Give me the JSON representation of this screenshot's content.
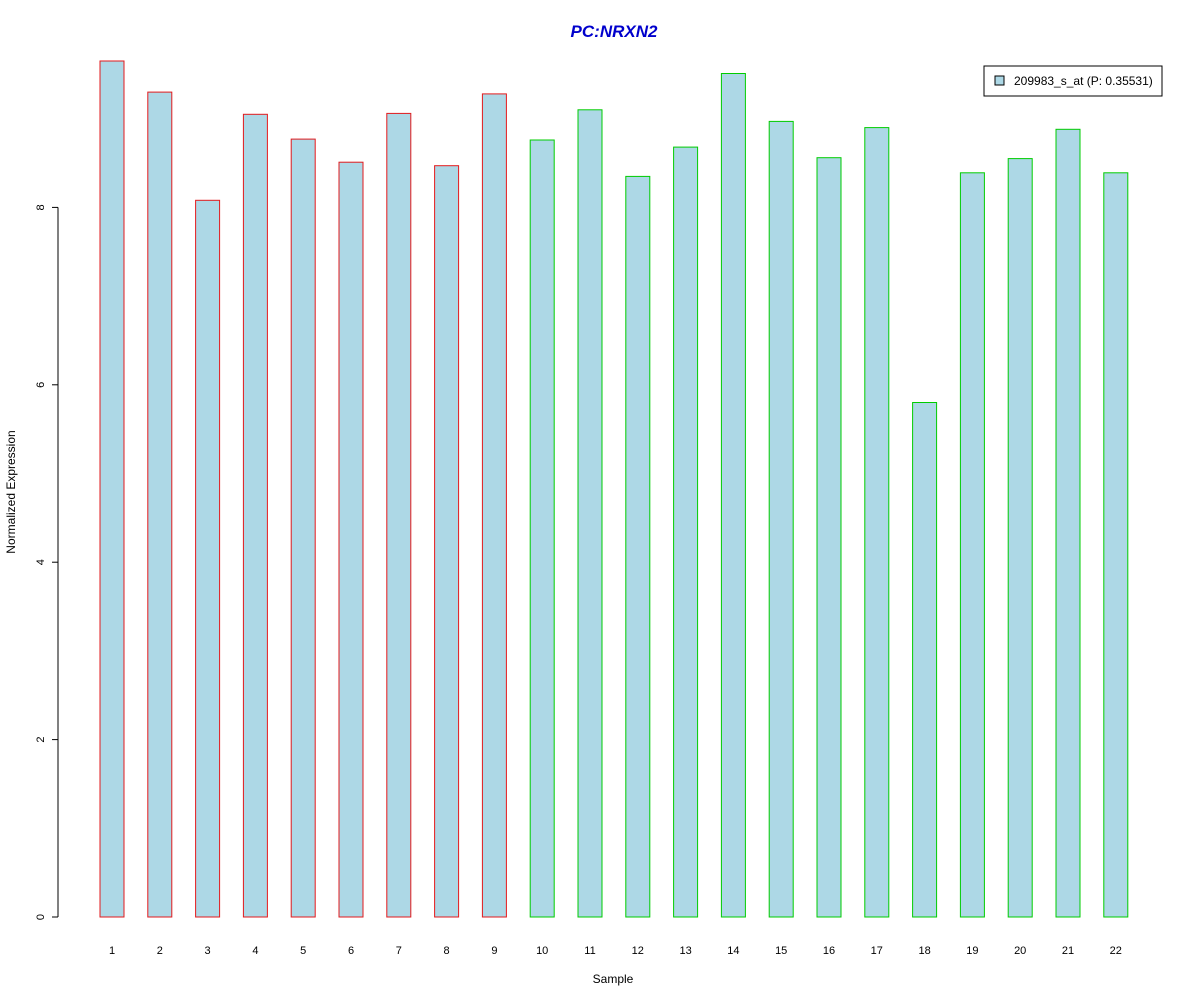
{
  "chart_data": {
    "type": "bar",
    "title": "PC:NRXN2",
    "xlabel": "Sample",
    "ylabel": "Normalized Expression",
    "categories": [
      "1",
      "2",
      "3",
      "4",
      "5",
      "6",
      "7",
      "8",
      "9",
      "10",
      "11",
      "12",
      "13",
      "14",
      "15",
      "16",
      "17",
      "18",
      "19",
      "20",
      "21",
      "22"
    ],
    "series": [
      {
        "name": "209983_s_at (P: 0.35531)",
        "values": [
          9.65,
          9.3,
          8.08,
          9.05,
          8.77,
          8.51,
          9.06,
          8.47,
          9.28,
          8.76,
          9.1,
          8.35,
          8.68,
          9.51,
          8.97,
          8.56,
          8.9,
          5.8,
          8.39,
          8.55,
          8.88,
          8.39
        ]
      }
    ],
    "group_border_colors": [
      "#e31a1c",
      "#e31a1c",
      "#e31a1c",
      "#e31a1c",
      "#e31a1c",
      "#e31a1c",
      "#e31a1c",
      "#e31a1c",
      "#e31a1c",
      "#00cc00",
      "#00cc00",
      "#00cc00",
      "#00cc00",
      "#00cc00",
      "#00cc00",
      "#00cc00",
      "#00cc00",
      "#00cc00",
      "#00cc00",
      "#00cc00",
      "#00cc00",
      "#00cc00"
    ],
    "bar_fill": "#add8e6",
    "title_color": "#0000cc",
    "yticks": [
      0,
      2,
      4,
      6,
      8
    ],
    "ylim": [
      0,
      9.75
    ],
    "grid": false,
    "legend_position": "top-right"
  }
}
